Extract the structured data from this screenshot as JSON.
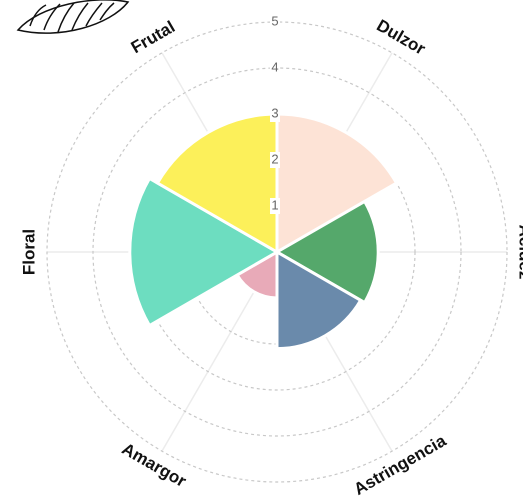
{
  "chart_data": {
    "type": "polar_bar",
    "categories": [
      "Dulzor",
      "Acidez",
      "Astringencia",
      "Amargor",
      "Floral",
      "Frutal"
    ],
    "values": [
      3,
      2.2,
      2.1,
      1,
      3.2,
      3
    ],
    "colors": [
      "#fde3d6",
      "#55a86b",
      "#6a8aab",
      "#e8aab8",
      "#6dddc0",
      "#fcf05a"
    ],
    "ylim": [
      0,
      5
    ],
    "yticks": [
      1,
      2,
      3,
      4,
      5
    ],
    "grid": true
  }
}
